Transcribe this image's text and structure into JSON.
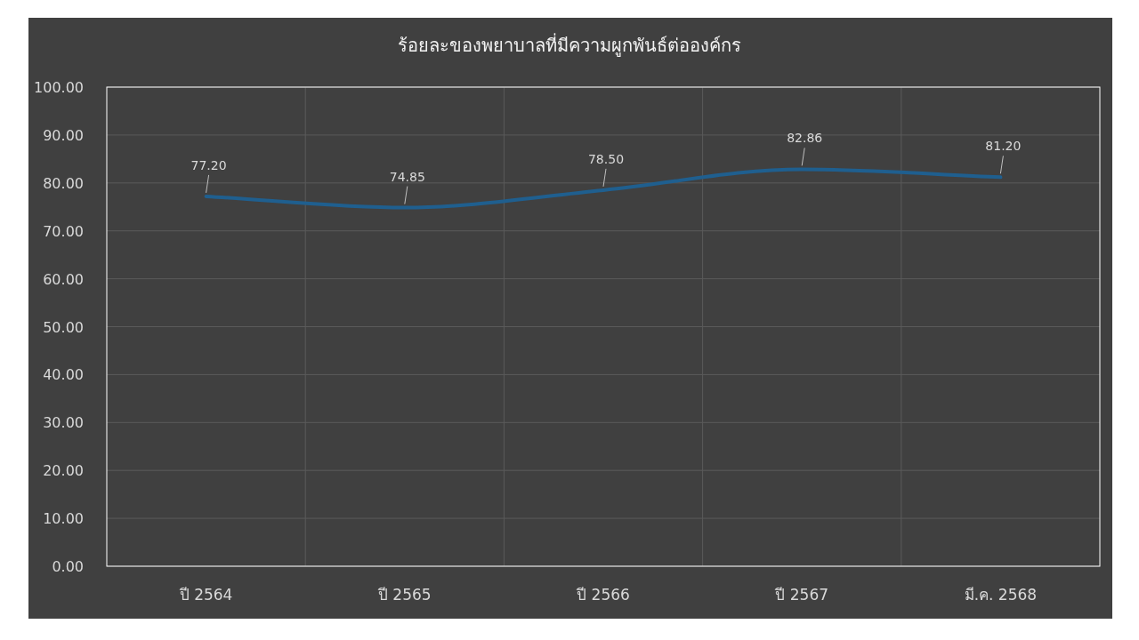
{
  "chart_data": {
    "type": "line",
    "title": "ร้อยละของพยาบาลที่มีความผูกพันธ์ต่อองค์กร",
    "categories": [
      "ปี 2564",
      "ปี 2565",
      "ปี 2566",
      "ปี 2567",
      "มี.ค. 2568"
    ],
    "series": [
      {
        "color": "#1f5f8f",
        "values": [
          77.2,
          74.85,
          78.5,
          82.86,
          81.2
        ],
        "value_labels": [
          "77.20",
          "74.85",
          "78.50",
          "82.86",
          "81.20"
        ]
      }
    ],
    "ylim": [
      0,
      100
    ],
    "yticks": [
      {
        "value": 0,
        "label": "0.00"
      },
      {
        "value": 10,
        "label": "10.00"
      },
      {
        "value": 20,
        "label": "20.00"
      },
      {
        "value": 30,
        "label": "30.00"
      },
      {
        "value": 40,
        "label": "40.00"
      },
      {
        "value": 50,
        "label": "50.00"
      },
      {
        "value": 60,
        "label": "60.00"
      },
      {
        "value": 70,
        "label": "70.00"
      },
      {
        "value": 80,
        "label": "80.00"
      },
      {
        "value": 90,
        "label": "90.00"
      },
      {
        "value": 100,
        "label": "100.00"
      }
    ],
    "grid": true,
    "marker": "none",
    "line_style": "solid"
  }
}
